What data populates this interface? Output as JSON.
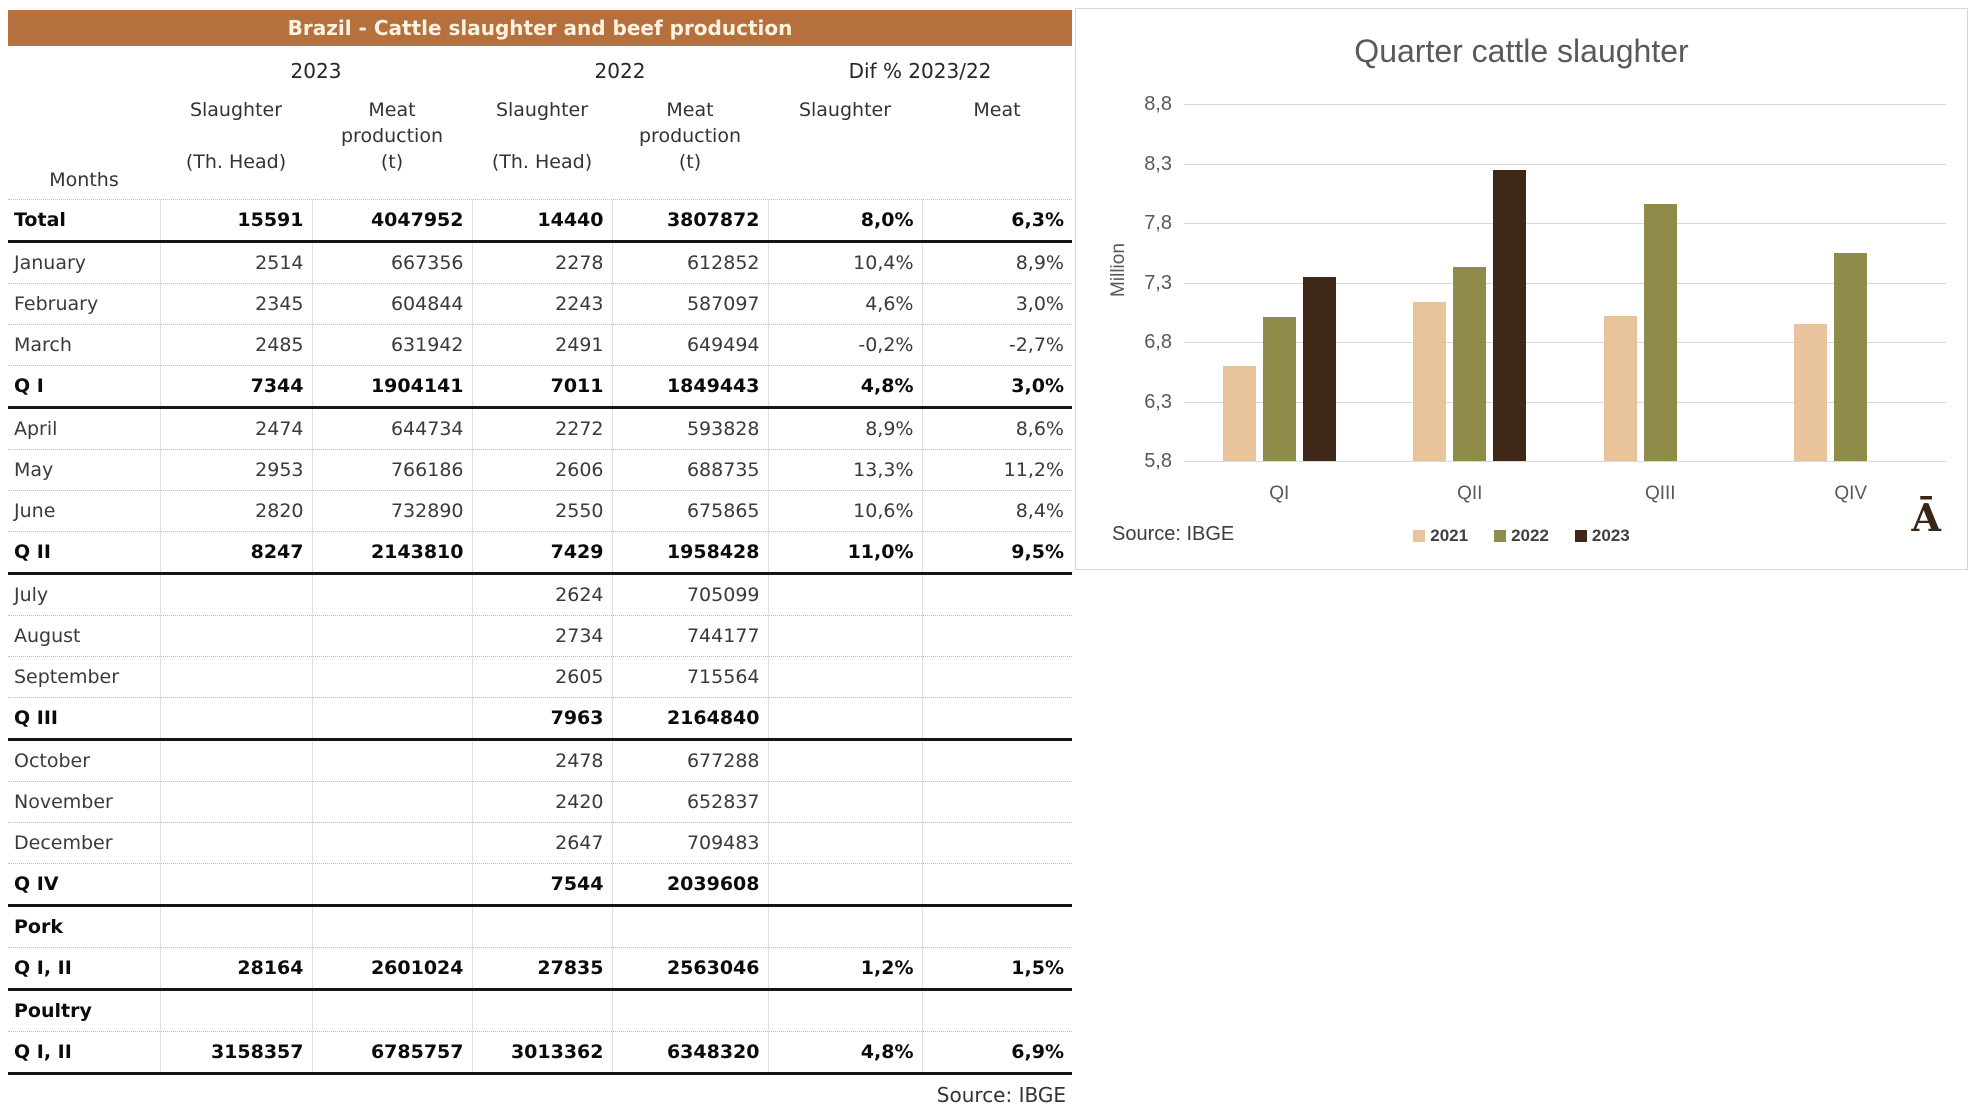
{
  "table": {
    "title": "Brazil - Cattle slaughter and beef production",
    "header": {
      "months_label": "Months",
      "year_groups": [
        "2023",
        "2022",
        "Dif % 2023/22"
      ],
      "columns": [
        "Slaughter\n\n(Th. Head)",
        "Meat\nproduction\n(t)",
        "Slaughter\n\n(Th. Head)",
        "Meat\nproduction\n(t)",
        "Slaughter",
        "Meat"
      ]
    },
    "rows": [
      {
        "label": "Total",
        "bold": true,
        "rule": "thick",
        "values": [
          "15591",
          "4047952",
          "14440",
          "3807872",
          "8,0%",
          "6,3%"
        ]
      },
      {
        "label": "January",
        "bold": false,
        "rule": "dotted",
        "values": [
          "2514",
          "667356",
          "2278",
          "612852",
          "10,4%",
          "8,9%"
        ]
      },
      {
        "label": "February",
        "bold": false,
        "rule": "dotted",
        "values": [
          "2345",
          "604844",
          "2243",
          "587097",
          "4,6%",
          "3,0%"
        ]
      },
      {
        "label": "March",
        "bold": false,
        "rule": "dotted",
        "values": [
          "2485",
          "631942",
          "2491",
          "649494",
          "-0,2%",
          "-2,7%"
        ]
      },
      {
        "label": "Q I",
        "bold": true,
        "rule": "thick",
        "values": [
          "7344",
          "1904141",
          "7011",
          "1849443",
          "4,8%",
          "3,0%"
        ]
      },
      {
        "label": "April",
        "bold": false,
        "rule": "dotted",
        "values": [
          "2474",
          "644734",
          "2272",
          "593828",
          "8,9%",
          "8,6%"
        ]
      },
      {
        "label": "May",
        "bold": false,
        "rule": "dotted",
        "values": [
          "2953",
          "766186",
          "2606",
          "688735",
          "13,3%",
          "11,2%"
        ]
      },
      {
        "label": "June",
        "bold": false,
        "rule": "dotted",
        "values": [
          "2820",
          "732890",
          "2550",
          "675865",
          "10,6%",
          "8,4%"
        ]
      },
      {
        "label": "Q II",
        "bold": true,
        "rule": "thick",
        "values": [
          "8247",
          "2143810",
          "7429",
          "1958428",
          "11,0%",
          "9,5%"
        ]
      },
      {
        "label": "July",
        "bold": false,
        "rule": "dotted",
        "values": [
          "",
          "",
          "2624",
          "705099",
          "",
          ""
        ]
      },
      {
        "label": "August",
        "bold": false,
        "rule": "dotted",
        "values": [
          "",
          "",
          "2734",
          "744177",
          "",
          ""
        ]
      },
      {
        "label": "September",
        "bold": false,
        "rule": "dotted",
        "values": [
          "",
          "",
          "2605",
          "715564",
          "",
          ""
        ]
      },
      {
        "label": "Q III",
        "bold": true,
        "rule": "thick",
        "values": [
          "",
          "",
          "7963",
          "2164840",
          "",
          ""
        ]
      },
      {
        "label": "October",
        "bold": false,
        "rule": "dotted",
        "values": [
          "",
          "",
          "2478",
          "677288",
          "",
          ""
        ]
      },
      {
        "label": "November",
        "bold": false,
        "rule": "dotted",
        "values": [
          "",
          "",
          "2420",
          "652837",
          "",
          ""
        ]
      },
      {
        "label": "December",
        "bold": false,
        "rule": "dotted",
        "values": [
          "",
          "",
          "2647",
          "709483",
          "",
          ""
        ]
      },
      {
        "label": "Q IV",
        "bold": true,
        "rule": "thick",
        "values": [
          "",
          "",
          "7544",
          "2039608",
          "",
          ""
        ]
      },
      {
        "label": "Pork",
        "bold": true,
        "rule": "dotted",
        "values": [
          "",
          "",
          "",
          "",
          "",
          ""
        ]
      },
      {
        "label": "Q I, II",
        "bold": true,
        "rule": "thick",
        "values": [
          "28164",
          "2601024",
          "27835",
          "2563046",
          "1,2%",
          "1,5%"
        ]
      },
      {
        "label": "Poultry",
        "bold": true,
        "rule": "dotted",
        "values": [
          "",
          "",
          "",
          "",
          "",
          ""
        ]
      },
      {
        "label": "Q I, II",
        "bold": true,
        "rule": "thick",
        "values": [
          "3158357",
          "6785757",
          "3013362",
          "6348320",
          "4,8%",
          "6,9%"
        ]
      }
    ],
    "source": "Source: IBGE",
    "colors": {
      "title_bg": "#b6703d",
      "title_text": "#fbf2e0"
    }
  },
  "chart_data": {
    "type": "bar",
    "title": "Quarter cattle slaughter",
    "categories": [
      "QI",
      "QII",
      "QIII",
      "QIV"
    ],
    "series": [
      {
        "name": "2021",
        "color": "#e9c39c",
        "values": [
          6.6,
          7.14,
          7.02,
          6.95
        ]
      },
      {
        "name": "2022",
        "color": "#8f8c49",
        "values": [
          7.011,
          7.429,
          7.963,
          7.544
        ]
      },
      {
        "name": "2023",
        "color": "#3f2817",
        "values": [
          7.344,
          8.247,
          null,
          null
        ]
      }
    ],
    "ylabel": "Million",
    "ylim": [
      5.8,
      8.8
    ],
    "ytick_labels": [
      "8,8",
      "8,3",
      "7,8",
      "7,3",
      "6,8",
      "6,3",
      "5,8"
    ],
    "grid": true,
    "legend_position": "bottom",
    "source": "Source: IBGE",
    "watermark": "Ā"
  }
}
